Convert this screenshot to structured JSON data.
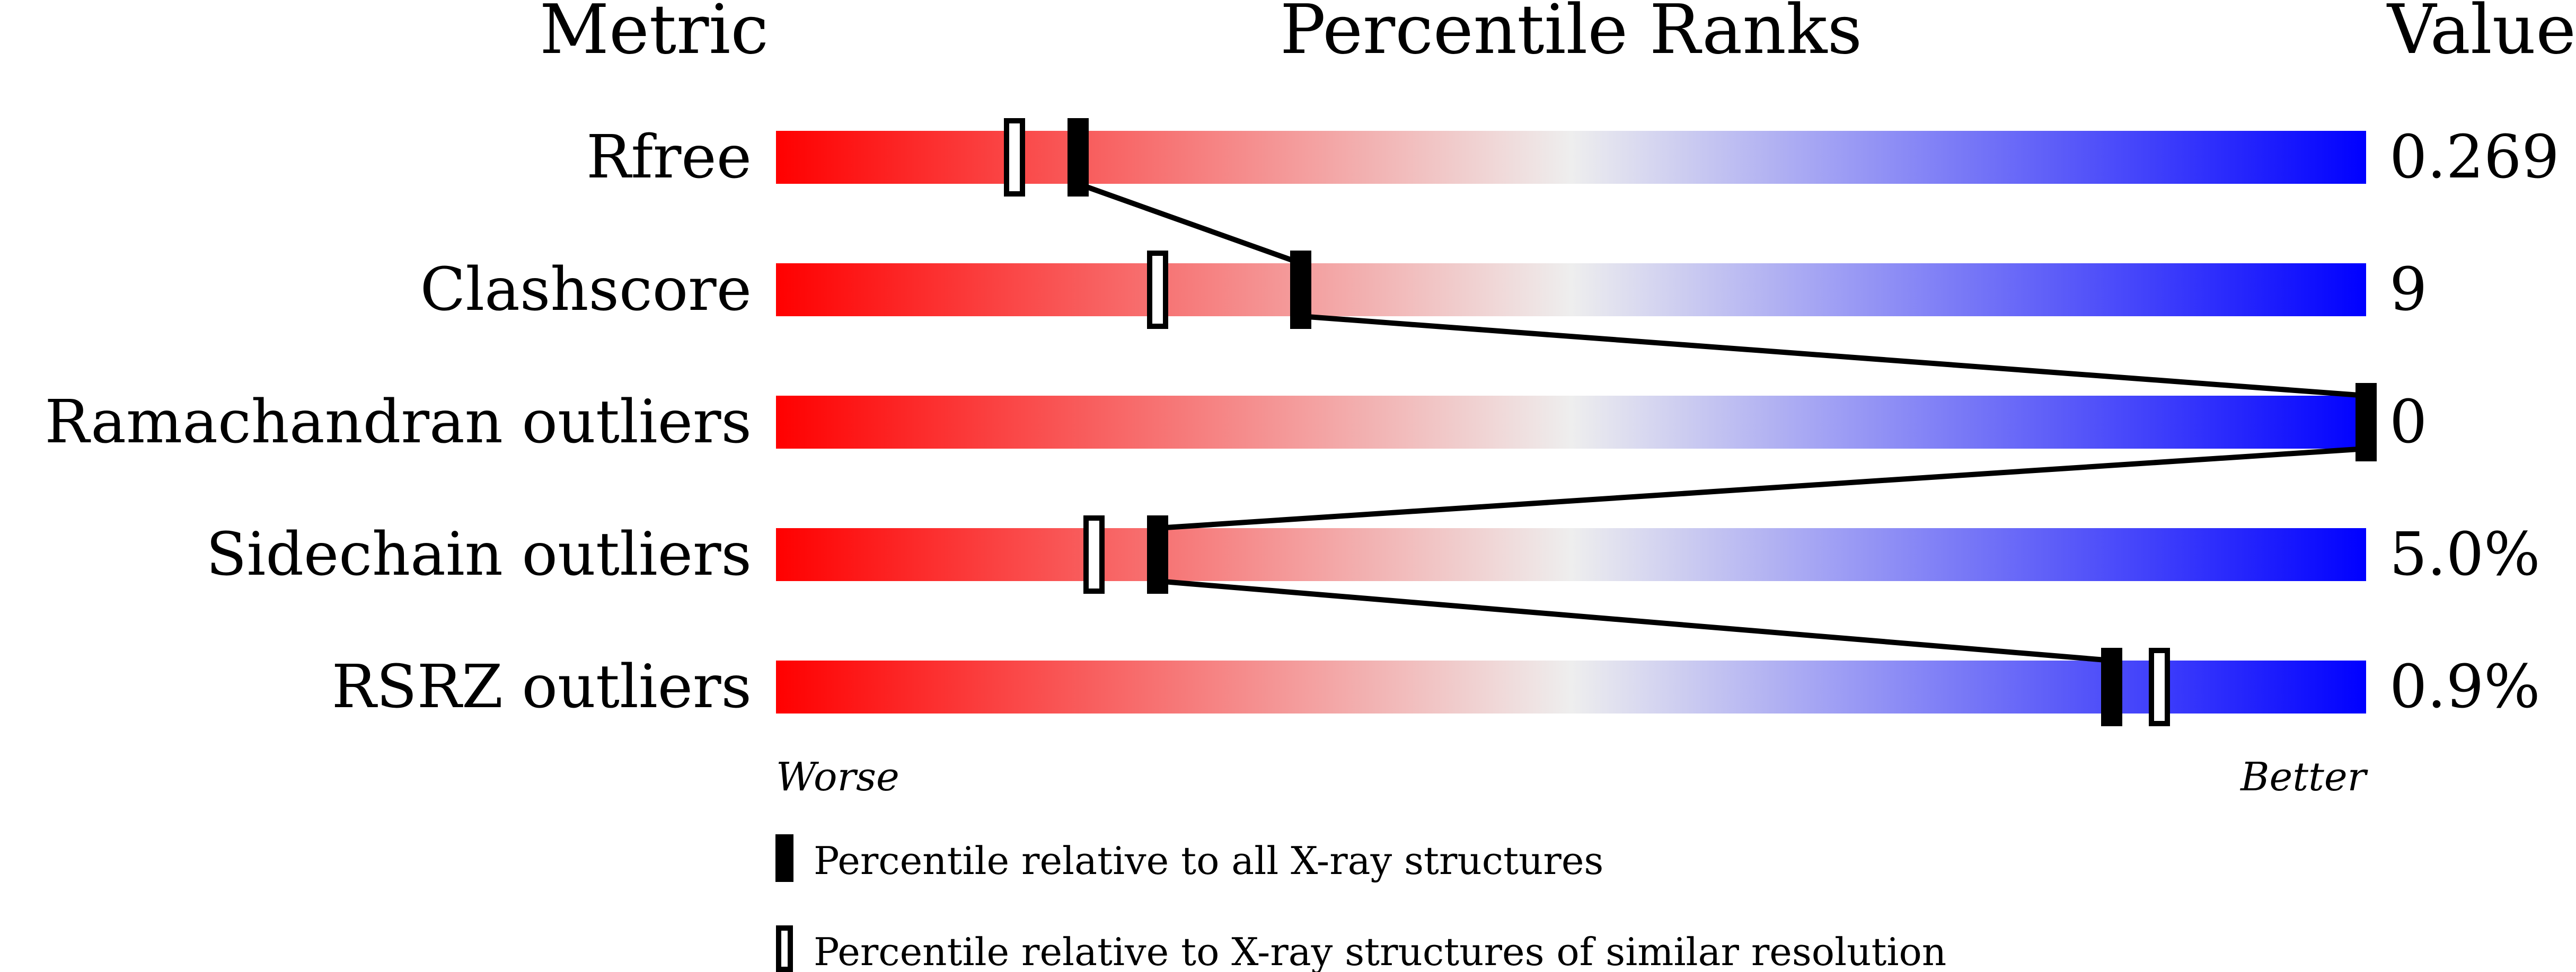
{
  "chart_data": {
    "type": "percentile-bar",
    "headers": {
      "metric": "Metric",
      "percentile": "Percentile Ranks",
      "value": "Value"
    },
    "xlim": [
      0,
      100
    ],
    "gradient_colors": {
      "worse": "#ff0000",
      "middle": "#eeeeee",
      "better": "#0000ff"
    },
    "axis_labels": {
      "left": "Worse",
      "right": "Better"
    },
    "rows": [
      {
        "metric": "Rfree",
        "value": "0.269",
        "percentile_all": 19,
        "percentile_similar": 15
      },
      {
        "metric": "Clashscore",
        "value": "9",
        "percentile_all": 33,
        "percentile_similar": 24
      },
      {
        "metric": "Ramachandran outliers",
        "value": "0",
        "percentile_all": 100,
        "percentile_similar": null
      },
      {
        "metric": "Sidechain outliers",
        "value": "5.0%",
        "percentile_all": 24,
        "percentile_similar": 20
      },
      {
        "metric": "RSRZ outliers",
        "value": "0.9%",
        "percentile_all": 84,
        "percentile_similar": 87
      }
    ],
    "legend": {
      "all": "Percentile relative to all X-ray structures",
      "similar": "Percentile relative to X-ray structures of similar resolution"
    }
  }
}
